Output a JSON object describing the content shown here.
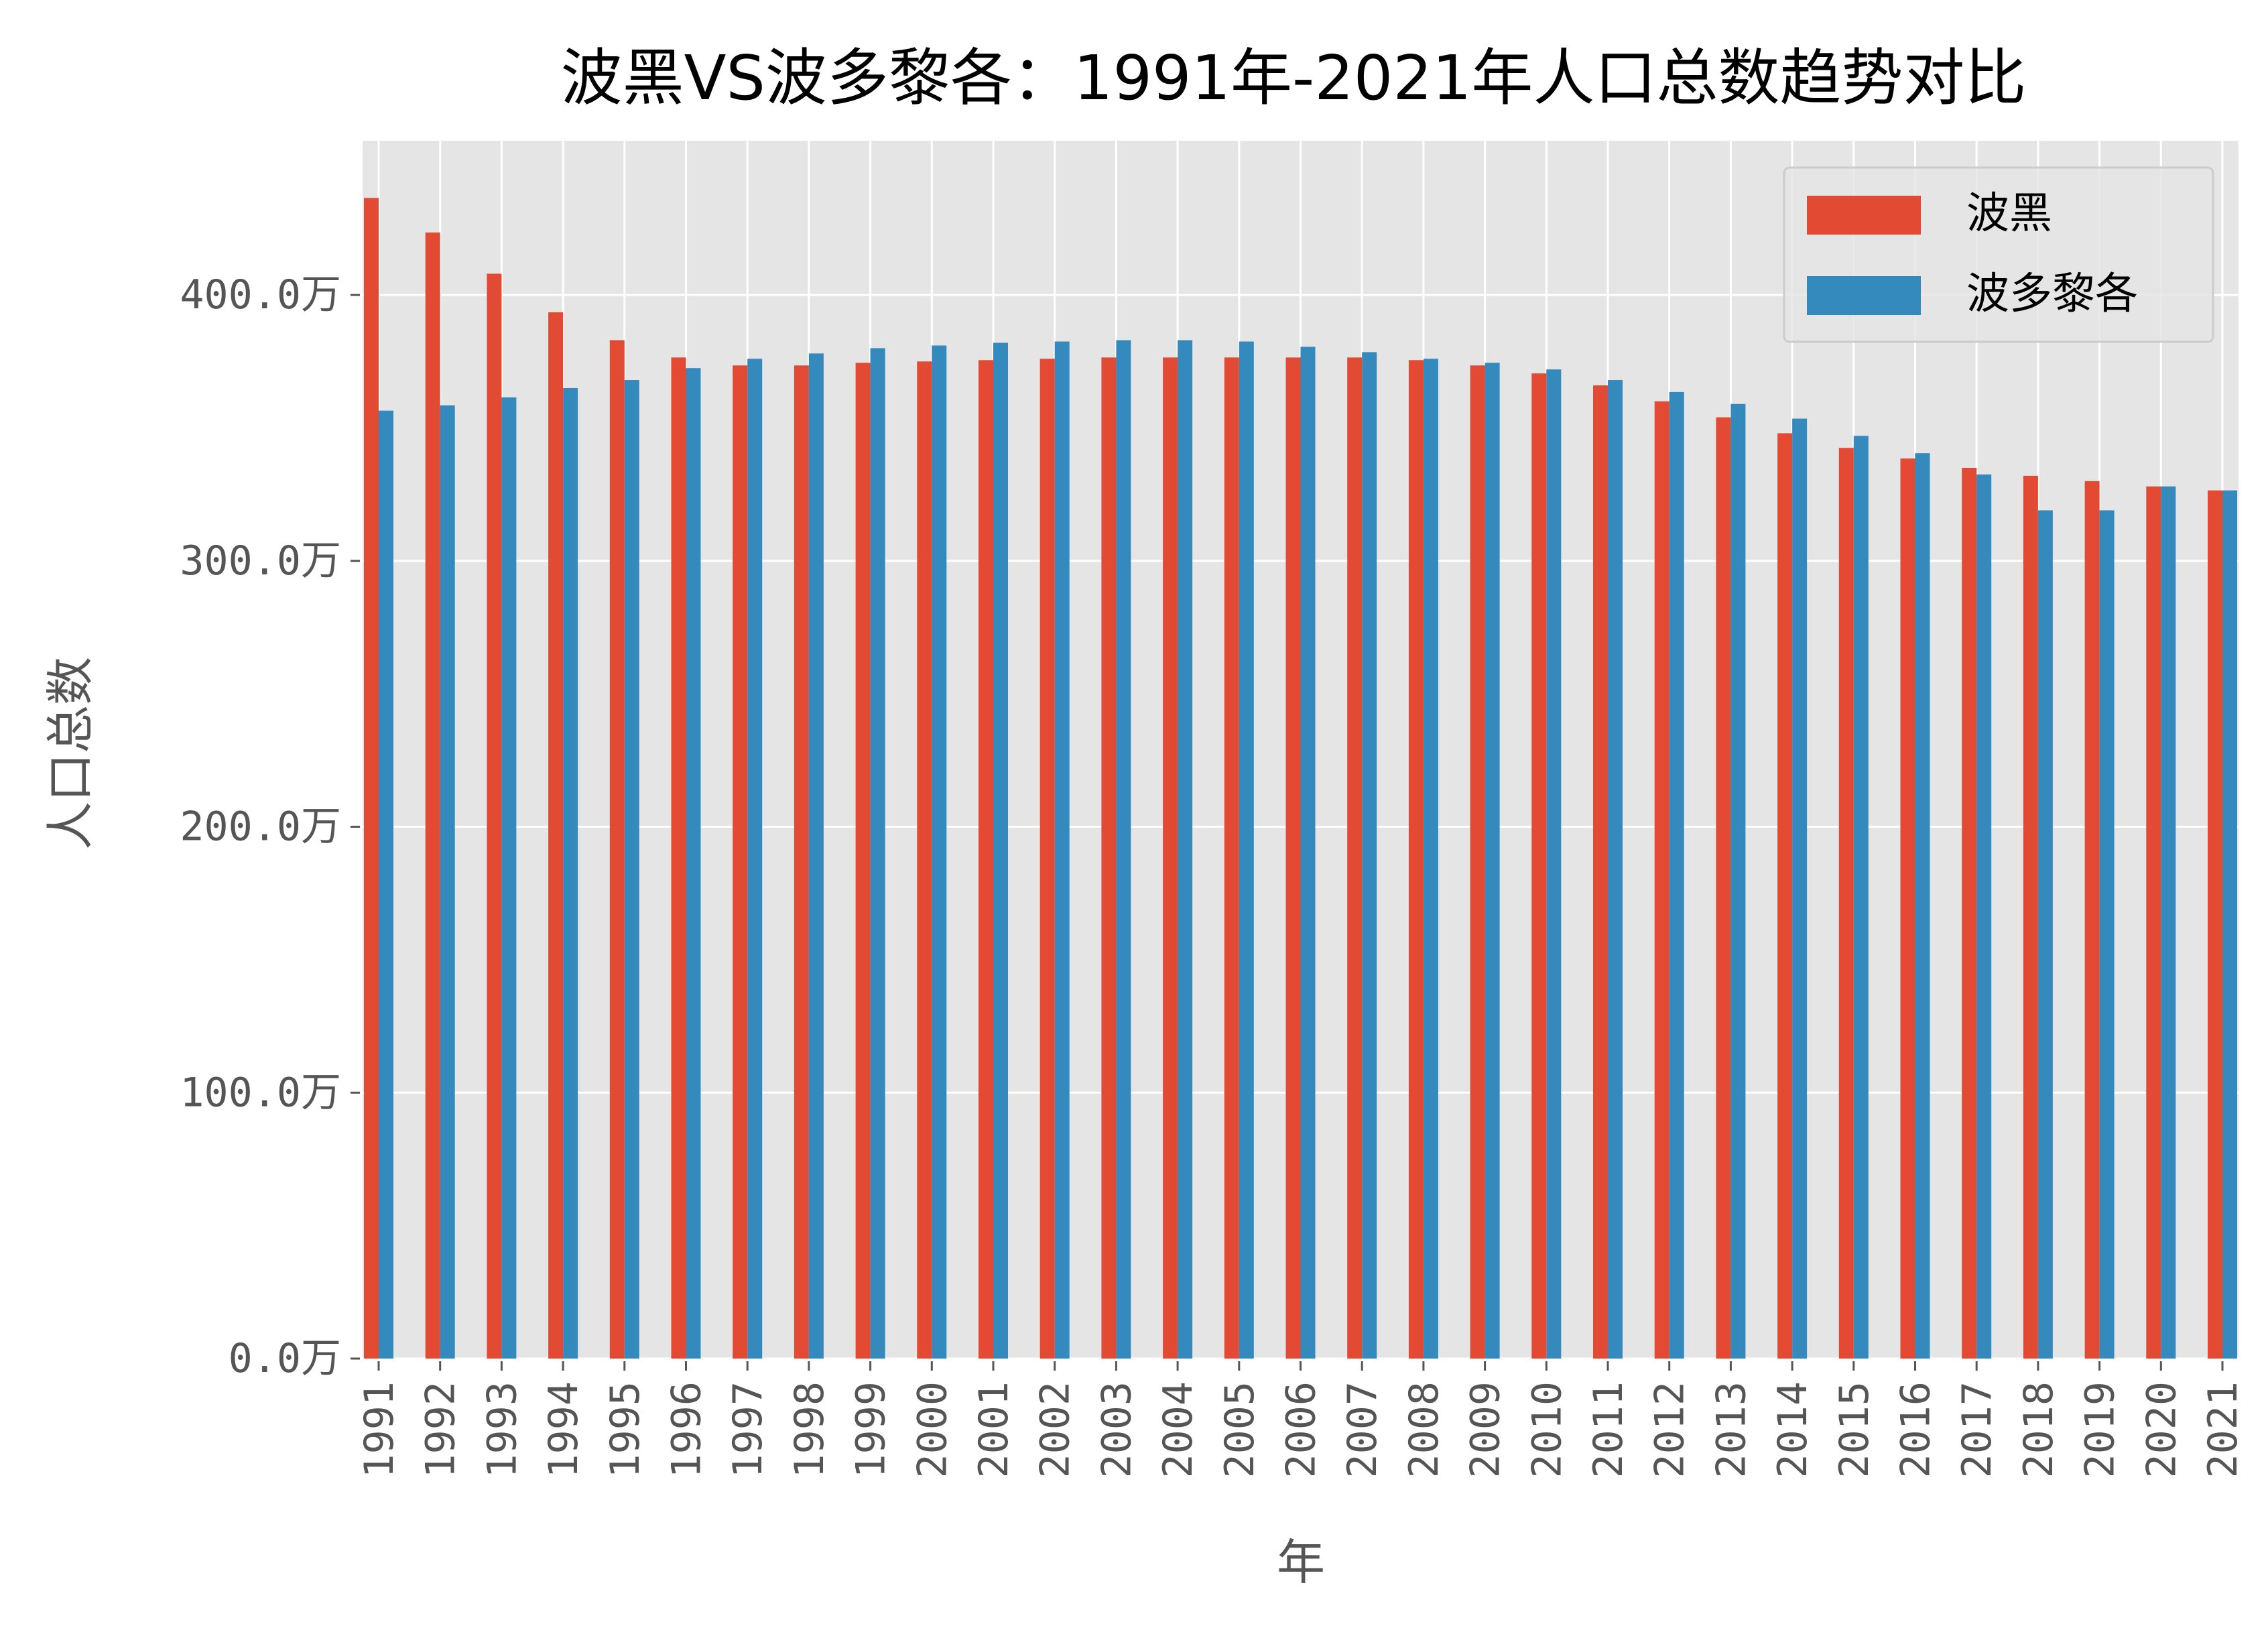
{
  "chart_data": {
    "type": "bar",
    "title": "波黑VS波多黎各：1991年-2021年人口总数趋势对比",
    "xlabel": "年",
    "ylabel": "人口总数",
    "categories": [
      "1991",
      "1992",
      "1993",
      "1994",
      "1995",
      "1996",
      "1997",
      "1998",
      "1999",
      "2000",
      "2001",
      "2002",
      "2003",
      "2004",
      "2005",
      "2006",
      "2007",
      "2008",
      "2009",
      "2010",
      "2011",
      "2012",
      "2013",
      "2014",
      "2015",
      "2016",
      "2017",
      "2018",
      "2019",
      "2020",
      "2021"
    ],
    "series": [
      {
        "name": "波黑",
        "color": "#E24A33",
        "values": [
          436.5,
          423.5,
          408,
          393.5,
          383,
          376.5,
          373.5,
          373.5,
          374.5,
          375,
          375.5,
          376,
          376.5,
          376.5,
          376.5,
          376.5,
          376.5,
          375.5,
          373.5,
          370.5,
          366,
          360,
          354,
          348,
          342.5,
          338.5,
          335,
          332,
          330,
          328,
          326.5
        ]
      },
      {
        "name": "波多黎各",
        "color": "#348ABD",
        "values": [
          356.5,
          358.5,
          361.5,
          365,
          368,
          372.5,
          376,
          378,
          380,
          381,
          382,
          382.5,
          383,
          383,
          382.5,
          380.5,
          378.5,
          376,
          374.5,
          372,
          368,
          363.5,
          359,
          353.5,
          347,
          340.5,
          332.5,
          319,
          319,
          328,
          326.5
        ]
      }
    ],
    "ylim": [
      0,
      458
    ],
    "yticks": [
      {
        "value": 0,
        "label": "0.0万"
      },
      {
        "value": 100,
        "label": "100.0万"
      },
      {
        "value": 200,
        "label": "200.0万"
      },
      {
        "value": 300,
        "label": "300.0万"
      },
      {
        "value": 400,
        "label": "400.0万"
      }
    ],
    "grid": true,
    "legend_position": "top-right",
    "plot_background": "#E5E5E5",
    "grid_color": "#FFFFFF"
  }
}
